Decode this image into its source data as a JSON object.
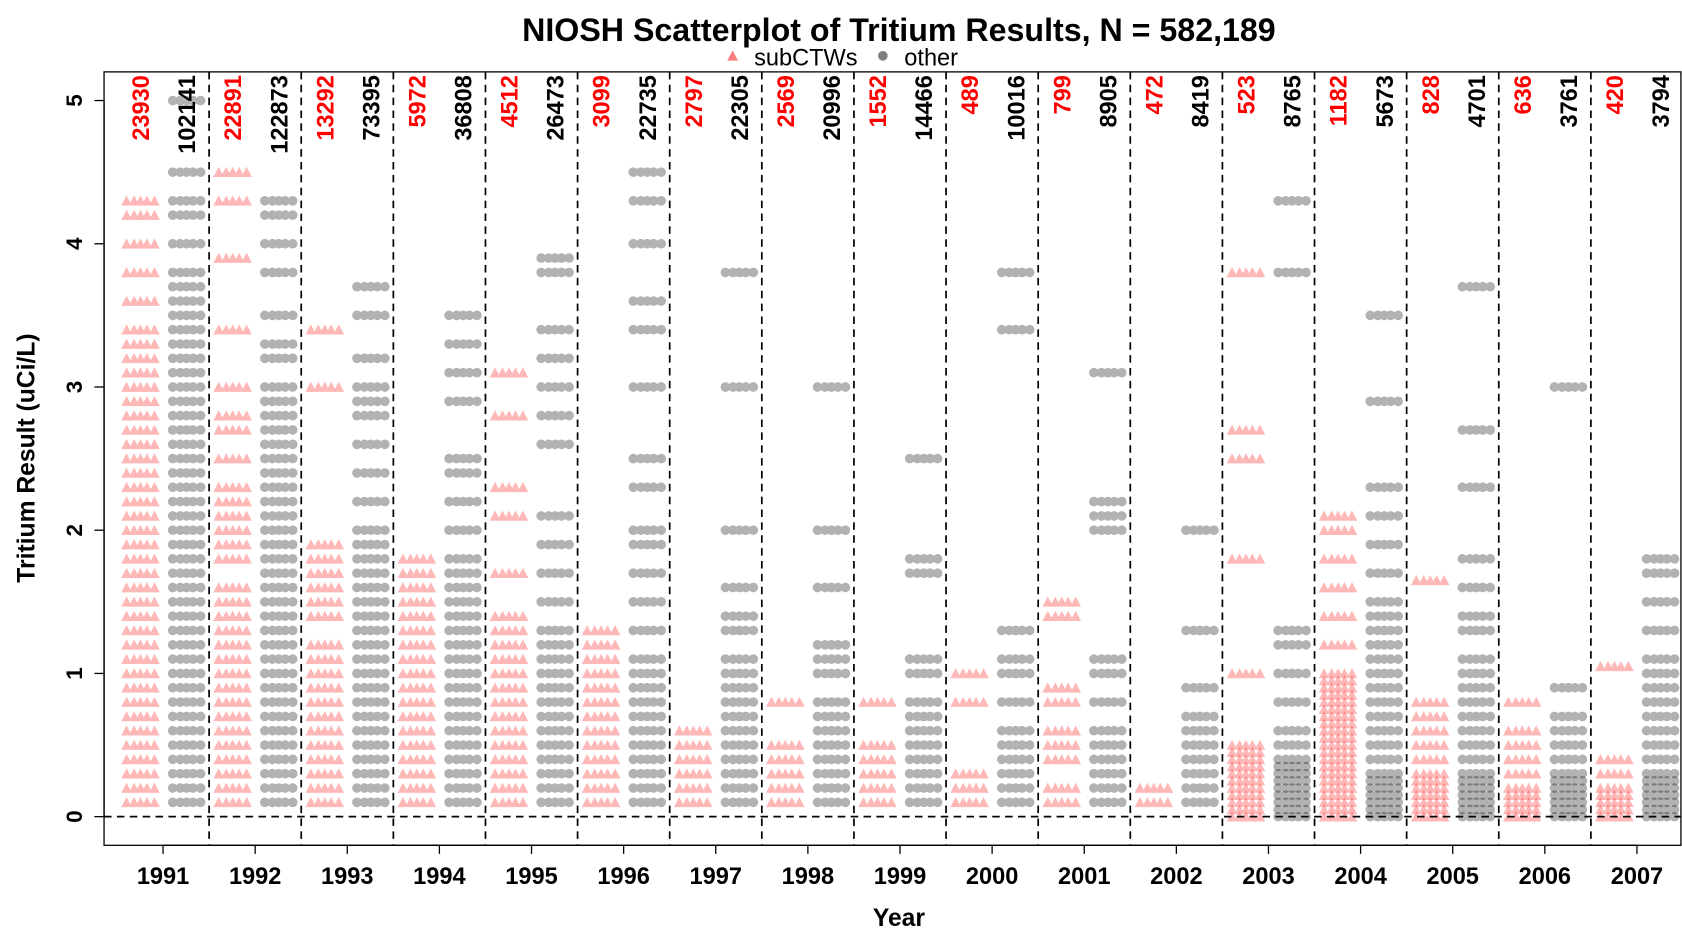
{
  "chart_data": {
    "type": "scatter",
    "title": "NIOSH Scatterplot of Tritium Results, N = 582,189",
    "xlabel": "Year",
    "ylabel": "Tritium Result (uCi/L)",
    "categories": [
      "1991",
      "1992",
      "1993",
      "1994",
      "1995",
      "1996",
      "1997",
      "1998",
      "1999",
      "2000",
      "2001",
      "2002",
      "2003",
      "2004",
      "2005",
      "2006",
      "2007"
    ],
    "ylim": [
      -0.2,
      5.2
    ],
    "yticks": [
      0,
      1,
      2,
      3,
      4,
      5
    ],
    "reference_lines": [
      0
    ],
    "legend": "top",
    "series": [
      {
        "name": "subCTWs",
        "color": "#ff0000",
        "marker": "triangle",
        "counts": [
          23930,
          22891,
          13292,
          5972,
          4512,
          3099,
          2797,
          2569,
          1552,
          489,
          799,
          472,
          523,
          1182,
          828,
          636,
          420
        ],
        "values": [
          [
            0.1,
            0.2,
            0.3,
            0.4,
            0.5,
            0.6,
            0.7,
            0.8,
            0.9,
            1.0,
            1.1,
            1.2,
            1.3,
            1.4,
            1.5,
            1.6,
            1.7,
            1.8,
            1.9,
            2.0,
            2.1,
            2.2,
            2.3,
            2.4,
            2.5,
            2.6,
            2.7,
            2.8,
            2.9,
            3.0,
            3.1,
            3.2,
            3.3,
            3.4,
            3.6,
            3.8,
            4.0,
            4.2,
            4.3
          ],
          [
            0.1,
            0.2,
            0.3,
            0.4,
            0.5,
            0.6,
            0.7,
            0.8,
            0.9,
            1.0,
            1.1,
            1.2,
            1.3,
            1.4,
            1.5,
            1.6,
            1.8,
            1.9,
            2.0,
            2.1,
            2.2,
            2.3,
            2.5,
            2.7,
            2.8,
            3.0,
            3.4,
            3.9,
            4.3,
            4.5
          ],
          [
            0.1,
            0.2,
            0.3,
            0.4,
            0.5,
            0.6,
            0.7,
            0.8,
            0.9,
            1.0,
            1.1,
            1.2,
            1.4,
            1.5,
            1.6,
            1.7,
            1.8,
            1.9,
            3.0,
            3.4
          ],
          [
            0.1,
            0.2,
            0.3,
            0.4,
            0.5,
            0.6,
            0.7,
            0.8,
            0.9,
            1.0,
            1.1,
            1.2,
            1.3,
            1.4,
            1.5,
            1.6,
            1.7,
            1.8
          ],
          [
            0.1,
            0.2,
            0.3,
            0.4,
            0.5,
            0.6,
            0.7,
            0.8,
            0.9,
            1.0,
            1.1,
            1.2,
            1.3,
            1.4,
            1.7,
            2.1,
            2.3,
            2.8,
            3.1
          ],
          [
            0.1,
            0.2,
            0.3,
            0.4,
            0.5,
            0.6,
            0.7,
            0.8,
            0.9,
            1.0,
            1.1,
            1.2,
            1.3
          ],
          [
            0.1,
            0.2,
            0.3,
            0.4,
            0.5,
            0.6
          ],
          [
            0.1,
            0.2,
            0.3,
            0.4,
            0.5,
            0.8
          ],
          [
            0.1,
            0.2,
            0.3,
            0.4,
            0.5,
            0.8
          ],
          [
            0.1,
            0.2,
            0.3,
            0.8,
            1.0
          ],
          [
            0.1,
            0.2,
            0.4,
            0.5,
            0.6,
            0.8,
            0.9,
            1.4,
            1.5
          ],
          [
            0.1,
            0.2
          ],
          [
            0,
            0.05,
            0.1,
            0.15,
            0.2,
            0.25,
            0.3,
            0.35,
            0.4,
            0.45,
            0.5,
            1.0,
            1.8,
            2.5,
            2.7,
            3.8
          ],
          [
            0,
            0.05,
            0.1,
            0.15,
            0.2,
            0.25,
            0.3,
            0.35,
            0.4,
            0.45,
            0.5,
            0.55,
            0.6,
            0.65,
            0.7,
            0.75,
            0.8,
            0.85,
            0.9,
            0.95,
            1.0,
            1.2,
            1.4,
            1.6,
            1.8,
            2.0,
            2.1
          ],
          [
            0,
            0.05,
            0.1,
            0.15,
            0.2,
            0.25,
            0.3,
            0.4,
            0.5,
            0.6,
            0.7,
            0.8,
            1.65
          ],
          [
            0,
            0.05,
            0.1,
            0.15,
            0.2,
            0.3,
            0.4,
            0.5,
            0.6,
            0.8
          ],
          [
            0,
            0.05,
            0.1,
            0.15,
            0.2,
            0.3,
            0.4,
            1.05
          ]
        ]
      },
      {
        "name": "other",
        "color": "#000000",
        "marker": "circle",
        "counts": [
          102141,
          122873,
          73395,
          36808,
          26473,
          22735,
          22305,
          20996,
          14466,
          10016,
          8905,
          8419,
          8765,
          5673,
          4701,
          3761,
          3794
        ],
        "values": [
          [
            0.1,
            0.2,
            0.3,
            0.4,
            0.5,
            0.6,
            0.7,
            0.8,
            0.9,
            1.0,
            1.1,
            1.2,
            1.3,
            1.4,
            1.5,
            1.6,
            1.7,
            1.8,
            1.9,
            2.0,
            2.1,
            2.2,
            2.3,
            2.4,
            2.5,
            2.6,
            2.7,
            2.8,
            2.9,
            3.0,
            3.1,
            3.2,
            3.3,
            3.4,
            3.5,
            3.6,
            3.7,
            3.8,
            4.0,
            4.2,
            4.3,
            4.5,
            5.0
          ],
          [
            0.1,
            0.2,
            0.3,
            0.4,
            0.5,
            0.6,
            0.7,
            0.8,
            0.9,
            1.0,
            1.1,
            1.2,
            1.3,
            1.4,
            1.5,
            1.6,
            1.7,
            1.8,
            1.9,
            2.0,
            2.1,
            2.2,
            2.3,
            2.4,
            2.5,
            2.6,
            2.7,
            2.8,
            2.9,
            3.0,
            3.2,
            3.3,
            3.5,
            3.8,
            4.0,
            4.2,
            4.3
          ],
          [
            0.1,
            0.2,
            0.3,
            0.4,
            0.5,
            0.6,
            0.7,
            0.8,
            0.9,
            1.0,
            1.1,
            1.2,
            1.3,
            1.4,
            1.5,
            1.6,
            1.7,
            1.8,
            1.9,
            2.0,
            2.2,
            2.4,
            2.6,
            2.8,
            2.9,
            3.0,
            3.2,
            3.5,
            3.7
          ],
          [
            0.1,
            0.2,
            0.3,
            0.4,
            0.5,
            0.6,
            0.7,
            0.8,
            0.9,
            1.0,
            1.1,
            1.2,
            1.3,
            1.4,
            1.5,
            1.6,
            1.7,
            1.8,
            2.0,
            2.2,
            2.4,
            2.5,
            2.9,
            3.1,
            3.3,
            3.5
          ],
          [
            0.1,
            0.2,
            0.3,
            0.4,
            0.5,
            0.6,
            0.7,
            0.8,
            0.9,
            1.0,
            1.1,
            1.2,
            1.3,
            1.5,
            1.7,
            1.9,
            2.1,
            2.6,
            2.8,
            3.0,
            3.2,
            3.4,
            3.8,
            3.9
          ],
          [
            0.1,
            0.2,
            0.3,
            0.4,
            0.5,
            0.6,
            0.7,
            0.8,
            0.9,
            1.0,
            1.1,
            1.3,
            1.5,
            1.7,
            1.9,
            2.0,
            2.3,
            2.5,
            3.0,
            3.4,
            3.6,
            4.0,
            4.3,
            4.5
          ],
          [
            0.1,
            0.2,
            0.3,
            0.4,
            0.5,
            0.6,
            0.7,
            0.8,
            0.9,
            1.0,
            1.1,
            1.3,
            1.4,
            1.6,
            2.0,
            3.0,
            3.8
          ],
          [
            0.1,
            0.2,
            0.3,
            0.4,
            0.5,
            0.6,
            0.7,
            0.8,
            1.0,
            1.1,
            1.2,
            1.6,
            2.0,
            3.0
          ],
          [
            0.1,
            0.2,
            0.3,
            0.4,
            0.5,
            0.6,
            0.7,
            0.8,
            1.0,
            1.1,
            1.7,
            1.8,
            2.5
          ],
          [
            0.1,
            0.2,
            0.3,
            0.4,
            0.5,
            0.6,
            0.8,
            1.0,
            1.1,
            1.3,
            3.4,
            3.8
          ],
          [
            0.1,
            0.2,
            0.3,
            0.4,
            0.5,
            0.6,
            0.8,
            1.0,
            1.1,
            2.0,
            2.1,
            2.2,
            3.1
          ],
          [
            0.1,
            0.2,
            0.3,
            0.4,
            0.5,
            0.6,
            0.7,
            0.9,
            1.3,
            2.0
          ],
          [
            0,
            0.05,
            0.1,
            0.15,
            0.2,
            0.25,
            0.3,
            0.35,
            0.4,
            0.5,
            0.6,
            0.8,
            1.0,
            1.2,
            1.3,
            3.8,
            4.3
          ],
          [
            0,
            0.05,
            0.1,
            0.15,
            0.2,
            0.25,
            0.3,
            0.4,
            0.5,
            0.6,
            0.7,
            0.8,
            0.9,
            1.0,
            1.1,
            1.2,
            1.3,
            1.4,
            1.5,
            1.7,
            1.9,
            2.1,
            2.3,
            2.9,
            3.5
          ],
          [
            0,
            0.05,
            0.1,
            0.15,
            0.2,
            0.25,
            0.3,
            0.4,
            0.5,
            0.6,
            0.7,
            0.8,
            0.9,
            1.0,
            1.1,
            1.3,
            1.4,
            1.6,
            1.8,
            2.3,
            2.7,
            3.7
          ],
          [
            0,
            0.05,
            0.1,
            0.15,
            0.2,
            0.25,
            0.3,
            0.4,
            0.5,
            0.6,
            0.7,
            0.9,
            3.0
          ],
          [
            0,
            0.05,
            0.1,
            0.15,
            0.2,
            0.25,
            0.3,
            0.4,
            0.5,
            0.6,
            0.7,
            0.8,
            0.9,
            1.0,
            1.1,
            1.3,
            1.5,
            1.7,
            1.8
          ]
        ]
      }
    ]
  }
}
